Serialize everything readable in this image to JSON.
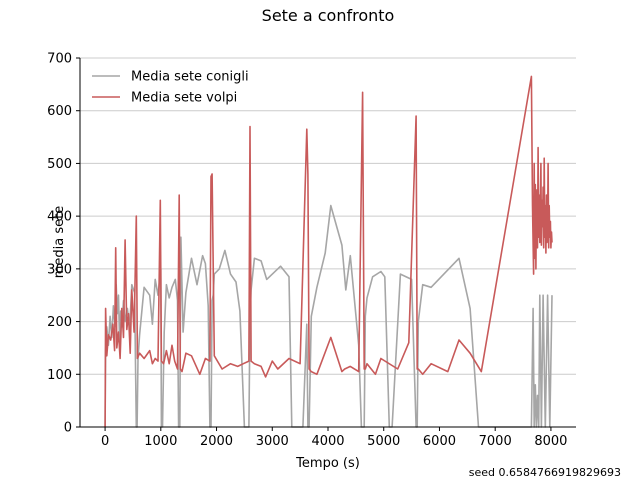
{
  "chart_data": {
    "type": "line",
    "title": "Sete a confronto",
    "xlabel": "Tempo (s)",
    "ylabel": "media sete",
    "xlim": [
      -450,
      8450
    ],
    "ylim": [
      0,
      700
    ],
    "xticks": [
      0,
      1000,
      2000,
      3000,
      4000,
      5000,
      6000,
      7000,
      8000
    ],
    "yticks": [
      0,
      100,
      200,
      300,
      400,
      500,
      600,
      700
    ],
    "grid": "horizontal",
    "legend": "top-left",
    "series": [
      {
        "name": "Media sete conigli",
        "color": "#a6a6a6",
        "x": [
          0,
          10,
          30,
          60,
          90,
          120,
          150,
          180,
          200,
          220,
          240,
          260,
          280,
          300,
          330,
          360,
          400,
          440,
          480,
          530,
          560,
          575,
          590,
          620,
          700,
          800,
          850,
          900,
          950,
          1000,
          1010,
          1030,
          1060,
          1100,
          1150,
          1200,
          1260,
          1300,
          1320,
          1340,
          1360,
          1400,
          1450,
          1550,
          1650,
          1750,
          1800,
          1850,
          1880,
          1900,
          1920,
          1940,
          1960,
          2050,
          2150,
          2250,
          2350,
          2420,
          2500,
          2580,
          2600,
          2620,
          2680,
          2800,
          2900,
          3150,
          3300,
          3350,
          3550,
          3620,
          3640,
          3660,
          3700,
          3800,
          3950,
          4050,
          4250,
          4320,
          4400,
          4550,
          4600,
          4650,
          4670,
          4700,
          4800,
          4950,
          5020,
          5100,
          5150,
          5300,
          5500,
          5580,
          5600,
          5620,
          5700,
          5850,
          6350,
          6550,
          6700,
          7650,
          7680,
          7700,
          7720,
          7740,
          7760,
          7780,
          7800,
          7830,
          7860,
          7900,
          7940,
          7980,
          8020
        ],
        "y": [
          0,
          145,
          190,
          155,
          210,
          170,
          230,
          190,
          270,
          215,
          250,
          160,
          220,
          190,
          240,
          200,
          225,
          185,
          270,
          255,
          0,
          0,
          130,
          175,
          265,
          250,
          195,
          280,
          250,
          300,
          0,
          0,
          180,
          270,
          245,
          265,
          280,
          240,
          0,
          0,
          360,
          180,
          255,
          320,
          270,
          325,
          310,
          230,
          0,
          0,
          240,
          250,
          290,
          300,
          335,
          290,
          275,
          220,
          0,
          0,
          210,
          260,
          320,
          315,
          280,
          305,
          285,
          0,
          0,
          195,
          0,
          0,
          210,
          265,
          330,
          420,
          345,
          260,
          325,
          155,
          0,
          0,
          210,
          245,
          285,
          295,
          285,
          0,
          0,
          290,
          280,
          0,
          0,
          200,
          270,
          265,
          320,
          225,
          0,
          0,
          225,
          0,
          80,
          0,
          60,
          0,
          250,
          0,
          250,
          0,
          250,
          0,
          250
        ]
      },
      {
        "name": "Media sete volpi",
        "color": "#c85a5a",
        "x": [
          0,
          10,
          30,
          60,
          100,
          140,
          170,
          190,
          210,
          240,
          270,
          300,
          330,
          360,
          390,
          420,
          450,
          480,
          520,
          560,
          580,
          620,
          700,
          800,
          850,
          900,
          950,
          990,
          1010,
          1050,
          1100,
          1150,
          1200,
          1250,
          1300,
          1330,
          1350,
          1380,
          1450,
          1550,
          1700,
          1800,
          1880,
          1900,
          1920,
          1960,
          2100,
          2250,
          2380,
          2480,
          2580,
          2600,
          2620,
          2680,
          2800,
          2880,
          3000,
          3100,
          3300,
          3500,
          3620,
          3640,
          3660,
          3700,
          3800,
          4050,
          4250,
          4300,
          4400,
          4550,
          4620,
          4650,
          4670,
          4700,
          4850,
          4950,
          5250,
          5450,
          5580,
          5600,
          5620,
          5700,
          5850,
          6150,
          6350,
          6550,
          6750,
          7650,
          7670,
          7690,
          7700,
          7710,
          7720,
          7730,
          7740,
          7750,
          7760,
          7770,
          7780,
          7790,
          7800,
          7810,
          7820,
          7830,
          7840,
          7850,
          7860,
          7870,
          7880,
          7890,
          7900,
          7910,
          7920,
          7930,
          7940,
          7950,
          7960,
          7970,
          7980,
          7990,
          8000,
          8010,
          8020
        ],
        "y": [
          0,
          225,
          135,
          175,
          165,
          195,
          145,
          340,
          150,
          180,
          130,
          225,
          170,
          355,
          185,
          215,
          140,
          260,
          180,
          400,
          130,
          140,
          130,
          145,
          120,
          130,
          125,
          430,
          125,
          120,
          145,
          120,
          155,
          125,
          110,
          440,
          110,
          105,
          140,
          135,
          100,
          130,
          125,
          475,
          480,
          135,
          110,
          120,
          115,
          120,
          125,
          570,
          125,
          120,
          115,
          95,
          125,
          110,
          130,
          120,
          565,
          480,
          110,
          105,
          100,
          170,
          105,
          110,
          115,
          105,
          635,
          110,
          110,
          120,
          100,
          130,
          110,
          160,
          590,
          110,
          110,
          100,
          120,
          105,
          165,
          140,
          105,
          665,
          420,
          290,
          500,
          320,
          460,
          300,
          420,
          450,
          340,
          530,
          360,
          440,
          350,
          410,
          500,
          345,
          430,
          380,
          455,
          340,
          510,
          360,
          420,
          330,
          440,
          350,
          380,
          500,
          340,
          420,
          360,
          390,
          340,
          370,
          350
        ]
      }
    ]
  },
  "footnote": "seed 0.6584766919829693"
}
